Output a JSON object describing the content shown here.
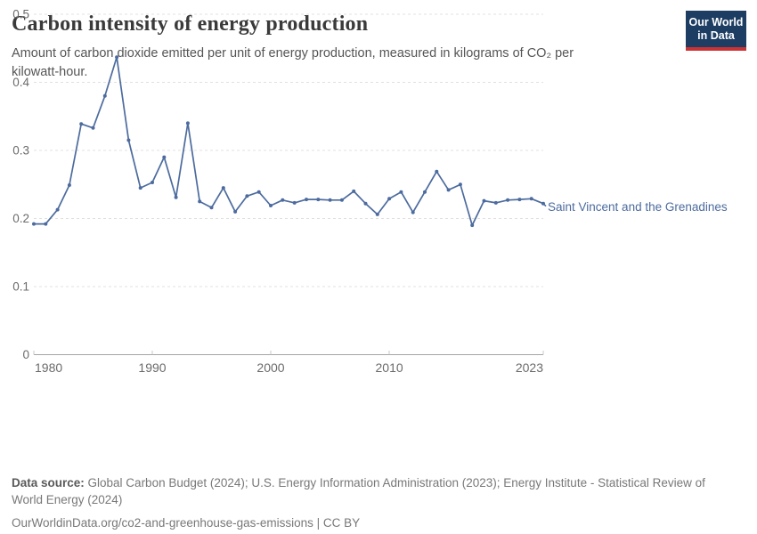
{
  "header": {
    "title": "Carbon intensity of energy production",
    "subtitle": "Amount of carbon dioxide emitted per unit of energy production, measured in kilograms of CO₂ per kilowatt-hour.",
    "logo": {
      "line1": "Our World",
      "line2": "in Data"
    }
  },
  "chart_data": {
    "type": "line",
    "title": "Carbon intensity of energy production",
    "xlabel": "",
    "ylabel": "kilograms of CO₂ per kilowatt-hour",
    "xlim": [
      1980,
      2023
    ],
    "ylim": [
      0,
      0.5
    ],
    "x_ticks": [
      1980,
      1990,
      2000,
      2010,
      2023
    ],
    "y_ticks": [
      0,
      0.1,
      0.2,
      0.3,
      0.4,
      0.5
    ],
    "grid": "horizontal-dashed",
    "legend_position": "end-of-line-label",
    "series": [
      {
        "name": "Saint Vincent and the Grenadines",
        "color": "#4c6b9e",
        "x": [
          1980,
          1981,
          1982,
          1983,
          1984,
          1985,
          1986,
          1987,
          1988,
          1989,
          1990,
          1991,
          1992,
          1993,
          1994,
          1995,
          1996,
          1997,
          1998,
          1999,
          2000,
          2001,
          2002,
          2003,
          2004,
          2005,
          2006,
          2007,
          2008,
          2009,
          2010,
          2011,
          2012,
          2013,
          2014,
          2015,
          2016,
          2017,
          2018,
          2019,
          2020,
          2021,
          2022,
          2023
        ],
        "values": [
          0.192,
          0.192,
          0.213,
          0.249,
          0.339,
          0.333,
          0.38,
          0.437,
          0.315,
          0.245,
          0.253,
          0.29,
          0.231,
          0.34,
          0.225,
          0.216,
          0.245,
          0.21,
          0.233,
          0.239,
          0.219,
          0.227,
          0.223,
          0.228,
          0.228,
          0.227,
          0.227,
          0.24,
          0.222,
          0.206,
          0.229,
          0.239,
          0.209,
          0.239,
          0.269,
          0.242,
          0.25,
          0.19,
          0.226,
          0.223,
          0.227,
          0.228,
          0.229,
          0.222
        ]
      }
    ]
  },
  "footer": {
    "source_label": "Data source:",
    "source_text": " Global Carbon Budget (2024); U.S. Energy Information Administration (2023); Energy Institute - Statistical Review of World Energy (2024)",
    "url_line": "OurWorldinData.org/co2-and-greenhouse-gas-emissions | CC BY"
  },
  "colors": {
    "series": "#4c6b9e",
    "grid": "#e0e0e0",
    "axis": "#a5a5a5",
    "tick_label": "#6b6b6b",
    "logo_bg": "#1d3d63",
    "logo_stripe": "#cc3134"
  }
}
